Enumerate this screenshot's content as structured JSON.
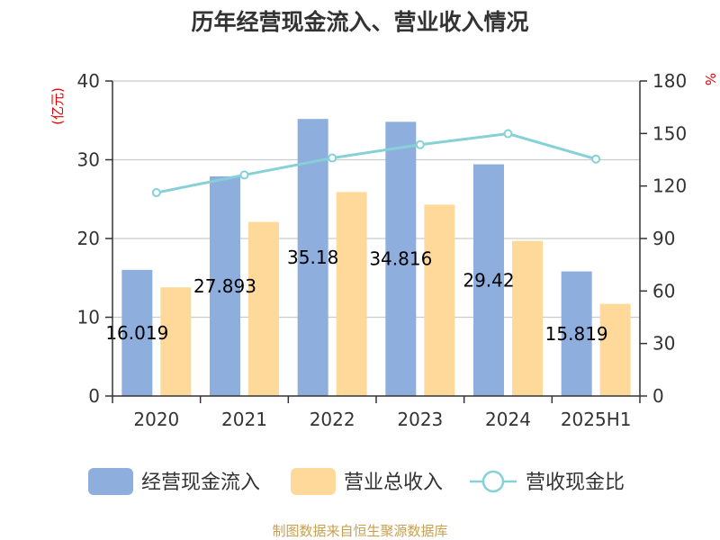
{
  "chart_data": {
    "type": "bar",
    "title": "历年经营现金流入、营业收入情况",
    "categories": [
      "2020",
      "2021",
      "2022",
      "2023",
      "2024",
      "2025H1"
    ],
    "y_left_unit": "(亿元)",
    "y_right_unit": "%",
    "ylim_left": [
      0,
      40
    ],
    "yticks_left": [
      0,
      10,
      20,
      30,
      40
    ],
    "ylim_right": [
      0,
      180
    ],
    "yticks_right": [
      0,
      30,
      60,
      90,
      120,
      150,
      180
    ],
    "grid": true,
    "legend_position": "bottom",
    "series": [
      {
        "name": "经营现金流入",
        "type": "bar",
        "axis": "left",
        "color": "#8eaedd",
        "values": [
          16.019,
          27.893,
          35.18,
          34.816,
          29.42,
          15.819
        ],
        "labels": [
          "16.019",
          "27.893",
          "35.18",
          "34.816",
          "29.42",
          "15.819"
        ]
      },
      {
        "name": "营业总收入",
        "type": "bar",
        "axis": "left",
        "color": "#ffd999",
        "values": [
          13.8,
          22.1,
          25.9,
          24.3,
          19.7,
          11.7
        ]
      },
      {
        "name": "营收现金比",
        "type": "line",
        "axis": "right",
        "color": "#86d1d6",
        "values": [
          116.2,
          126.3,
          136.0,
          143.6,
          149.9,
          135.4
        ]
      }
    ]
  },
  "source": "制图数据来自恒生聚源数据库"
}
